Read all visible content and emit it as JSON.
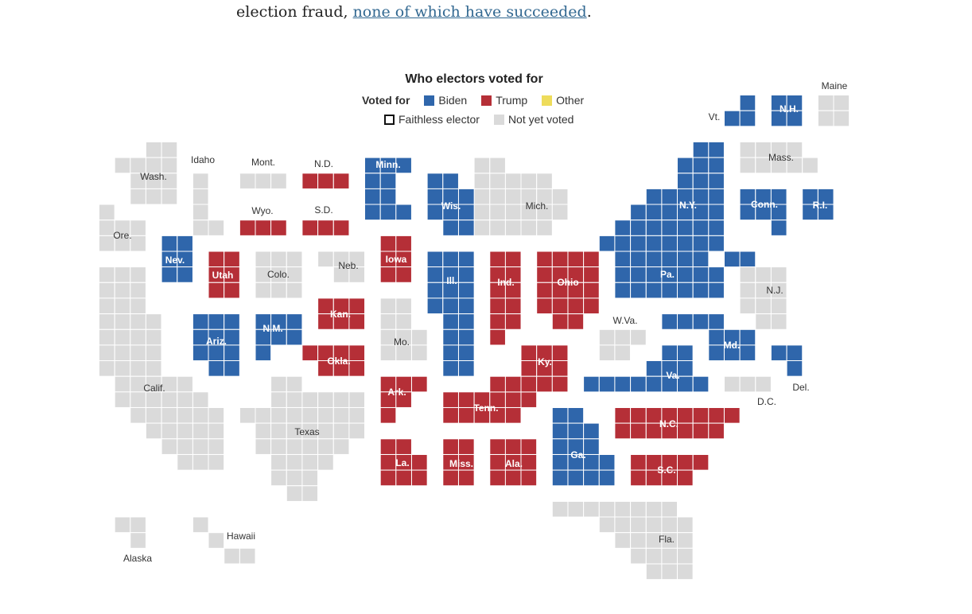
{
  "intro": {
    "prefix": "election fraud, ",
    "link": "none of which have succeeded",
    "suffix": "."
  },
  "legend": {
    "title": "Who electors voted for",
    "voted_for_label": "Voted for",
    "items": [
      {
        "label": "Biden",
        "color": "#2f66ab"
      },
      {
        "label": "Trump",
        "color": "#b52f37"
      },
      {
        "label": "Other",
        "color": "#eedc5b"
      }
    ],
    "faithless_label": "Faithless elector",
    "not_yet_label": "Not yet voted",
    "not_yet_color": "#dadada"
  },
  "colors": {
    "biden": "#2f66ab",
    "trump": "#b52f37",
    "other": "#eedc5b",
    "not_yet": "#dadada"
  },
  "states": [
    {
      "name": "Maine",
      "status": "not_yet",
      "electors": 4
    },
    {
      "name": "Vt.",
      "status": "biden",
      "electors": 3
    },
    {
      "name": "N.H.",
      "status": "biden",
      "electors": 4
    },
    {
      "name": "Mass.",
      "status": "not_yet",
      "electors": 11
    },
    {
      "name": "N.Y.",
      "status": "biden",
      "electors": 29
    },
    {
      "name": "Conn.",
      "status": "biden",
      "electors": 7
    },
    {
      "name": "R.I.",
      "status": "biden",
      "electors": 4
    },
    {
      "name": "Pa.",
      "status": "biden",
      "electors": 20
    },
    {
      "name": "N.J.",
      "status": "not_yet",
      "electors": 14
    },
    {
      "name": "Md.",
      "status": "biden",
      "electors": 10
    },
    {
      "name": "Del.",
      "status": "biden",
      "electors": 3
    },
    {
      "name": "D.C.",
      "status": "not_yet",
      "electors": 3
    },
    {
      "name": "W.Va.",
      "status": "not_yet",
      "electors": 5
    },
    {
      "name": "Va.",
      "status": "biden",
      "electors": 13
    },
    {
      "name": "N.C.",
      "status": "trump",
      "electors": 15
    },
    {
      "name": "S.C.",
      "status": "trump",
      "electors": 9
    },
    {
      "name": "Ga.",
      "status": "biden",
      "electors": 16
    },
    {
      "name": "Fla.",
      "status": "not_yet",
      "electors": 29
    },
    {
      "name": "Ala.",
      "status": "trump",
      "electors": 9
    },
    {
      "name": "Miss.",
      "status": "trump",
      "electors": 6
    },
    {
      "name": "La.",
      "status": "trump",
      "electors": 8
    },
    {
      "name": "Tenn.",
      "status": "trump",
      "electors": 11
    },
    {
      "name": "Ky.",
      "status": "trump",
      "electors": 8
    },
    {
      "name": "Ohio",
      "status": "trump",
      "electors": 18
    },
    {
      "name": "Ind.",
      "status": "trump",
      "electors": 11
    },
    {
      "name": "Mich.",
      "status": "not_yet",
      "electors": 16
    },
    {
      "name": "Ill.",
      "status": "biden",
      "electors": 20
    },
    {
      "name": "Wis.",
      "status": "biden",
      "electors": 10
    },
    {
      "name": "Minn.",
      "status": "biden",
      "electors": 10
    },
    {
      "name": "Iowa",
      "status": "trump",
      "electors": 6
    },
    {
      "name": "Mo.",
      "status": "not_yet",
      "electors": 10
    },
    {
      "name": "Ark.",
      "status": "trump",
      "electors": 6
    },
    {
      "name": "Okla.",
      "status": "trump",
      "electors": 7
    },
    {
      "name": "Kan.",
      "status": "trump",
      "electors": 6
    },
    {
      "name": "Neb.",
      "status": "not_yet",
      "electors": 5
    },
    {
      "name": "S.D.",
      "status": "trump",
      "electors": 3
    },
    {
      "name": "N.D.",
      "status": "trump",
      "electors": 3
    },
    {
      "name": "Texas",
      "status": "not_yet",
      "electors": 38
    },
    {
      "name": "N.M.",
      "status": "biden",
      "electors": 5
    },
    {
      "name": "Colo.",
      "status": "not_yet",
      "electors": 9
    },
    {
      "name": "Wyo.",
      "status": "trump",
      "electors": 3
    },
    {
      "name": "Mont.",
      "status": "not_yet",
      "electors": 3
    },
    {
      "name": "Idaho",
      "status": "not_yet",
      "electors": 4
    },
    {
      "name": "Utah",
      "status": "trump",
      "electors": 6
    },
    {
      "name": "Ariz.",
      "status": "biden",
      "electors": 11
    },
    {
      "name": "Nev.",
      "status": "biden",
      "electors": 6
    },
    {
      "name": "Calif.",
      "status": "not_yet",
      "electors": 55
    },
    {
      "name": "Ore.",
      "status": "not_yet",
      "electors": 7
    },
    {
      "name": "Wash.",
      "status": "not_yet",
      "electors": 12
    },
    {
      "name": "Alaska",
      "status": "not_yet",
      "electors": 3
    },
    {
      "name": "Hawaii",
      "status": "not_yet",
      "electors": 4
    }
  ]
}
